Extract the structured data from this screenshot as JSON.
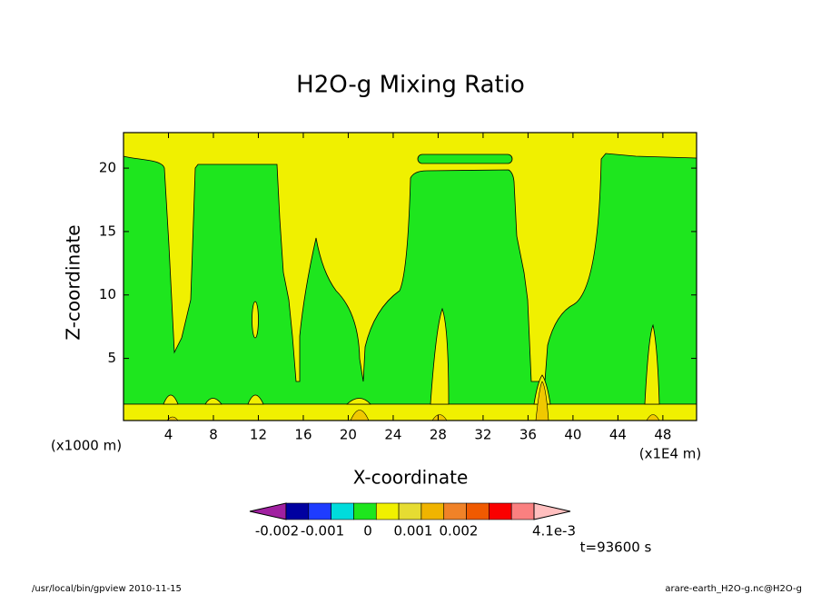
{
  "chart_data": {
    "type": "contour",
    "title": "H2O-g Mixing Ratio",
    "x_label": "X-coordinate",
    "y_label": "Z-coordinate",
    "x_scale_label": "(x1000 m)",
    "x_unit_label": "(x1E4 m)",
    "xlim": [
      0,
      51
    ],
    "ylim": [
      0.1,
      22.8
    ],
    "xticks": [
      4,
      8,
      12,
      16,
      20,
      24,
      28,
      32,
      36,
      40,
      44,
      48
    ],
    "yticks": [
      5,
      10,
      15,
      20
    ],
    "colorbar": {
      "ticks": [
        -0.002,
        -0.001,
        0,
        0.001,
        0.002,
        {
          "value": 0.0041,
          "label": "4.1e-3"
        }
      ],
      "colors": [
        "#a020a0",
        "#0000a0",
        "#1e3cff",
        "#00dcdc",
        "#1ee61e",
        "#f0f000",
        "#e6dc32",
        "#f0b400",
        "#f08228",
        "#f05a00",
        "#fa0000",
        "#fa8080",
        "#ffbfbf"
      ]
    },
    "time_label": "t=93600 s",
    "footer_left": "/usr/local/bin/gpview  2010-11-15",
    "footer_right": "arare-earth_H2O-g.nc@H2O-g"
  }
}
